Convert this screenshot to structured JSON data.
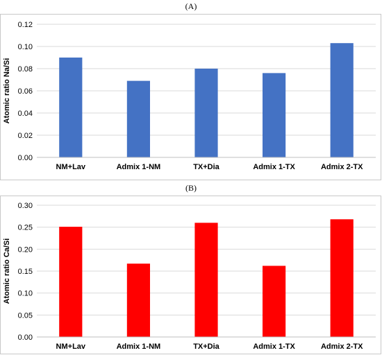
{
  "chart_data": [
    {
      "type": "bar",
      "panel_label": "(A)",
      "title": "",
      "xlabel": "",
      "ylabel": "Atomic ratio Na/Si",
      "categories": [
        "NM+Lav",
        "Admix 1-NM",
        "TX+Dia",
        "Admix 1-TX",
        "Admix 2-TX"
      ],
      "values": [
        0.09,
        0.069,
        0.08,
        0.076,
        0.103
      ],
      "ylim": [
        0,
        0.12
      ],
      "yticks": [
        "0.00",
        "0.02",
        "0.04",
        "0.06",
        "0.08",
        "0.10",
        "0.12"
      ],
      "bar_color": "#4472c4",
      "grid": true
    },
    {
      "type": "bar",
      "panel_label": "(B)",
      "title": "",
      "xlabel": "",
      "ylabel": "Atomic ratio Ca/Si",
      "categories": [
        "NM+Lav",
        "Admix 1-NM",
        "TX+Dia",
        "Admix 1-TX",
        "Admix 2-TX"
      ],
      "values": [
        0.251,
        0.167,
        0.26,
        0.162,
        0.268
      ],
      "ylim": [
        0,
        0.3
      ],
      "yticks": [
        "0.00",
        "0.05",
        "0.10",
        "0.15",
        "0.20",
        "0.25",
        "0.30"
      ],
      "bar_color": "#ff0000",
      "grid": true
    }
  ]
}
